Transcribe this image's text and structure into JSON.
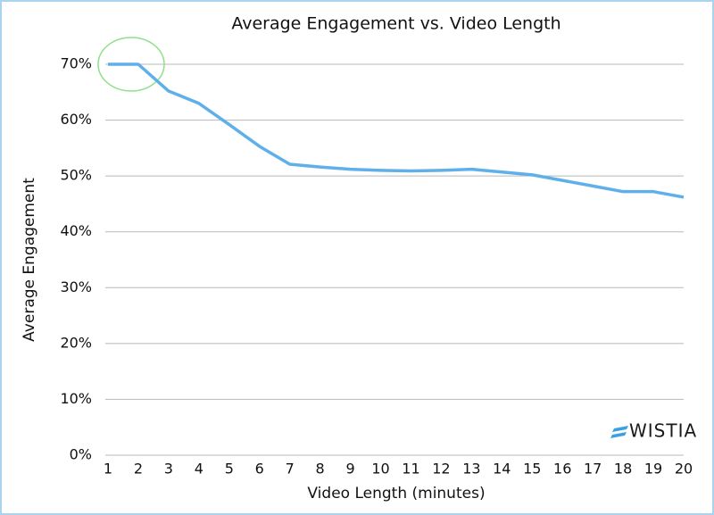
{
  "chart_data": {
    "type": "line",
    "title": "Average Engagement vs. Video Length",
    "x_label": "Video Length (minutes)",
    "y_label": "Average Engagement",
    "x": [
      1,
      2,
      3,
      4,
      5,
      6,
      7,
      8,
      9,
      10,
      11,
      12,
      13,
      14,
      15,
      16,
      17,
      18,
      19,
      20
    ],
    "values": [
      70,
      70,
      65.2,
      63,
      59.2,
      55.3,
      52.1,
      51.6,
      51.2,
      51,
      50.9,
      51,
      51.2,
      50.7,
      50.2,
      49.2,
      48.2,
      47.2,
      47.2,
      46.2
    ],
    "color": "#5fb0ea",
    "xlim": [
      1,
      20
    ],
    "xticks": [
      1,
      2,
      3,
      4,
      5,
      6,
      7,
      8,
      9,
      10,
      11,
      12,
      13,
      14,
      15,
      16,
      17,
      18,
      19,
      20
    ],
    "ylim": [
      0,
      70
    ],
    "yticks": [
      {
        "value": 0,
        "label": "0%"
      },
      {
        "value": 10,
        "label": "10%"
      },
      {
        "value": 20,
        "label": "20%"
      },
      {
        "value": 30,
        "label": "30%"
      },
      {
        "value": 40,
        "label": "40%"
      },
      {
        "value": 50,
        "label": "50%"
      },
      {
        "value": 60,
        "label": "60%"
      },
      {
        "value": 70,
        "label": "70%"
      }
    ],
    "grid": true,
    "watermark": "WISTIA"
  }
}
